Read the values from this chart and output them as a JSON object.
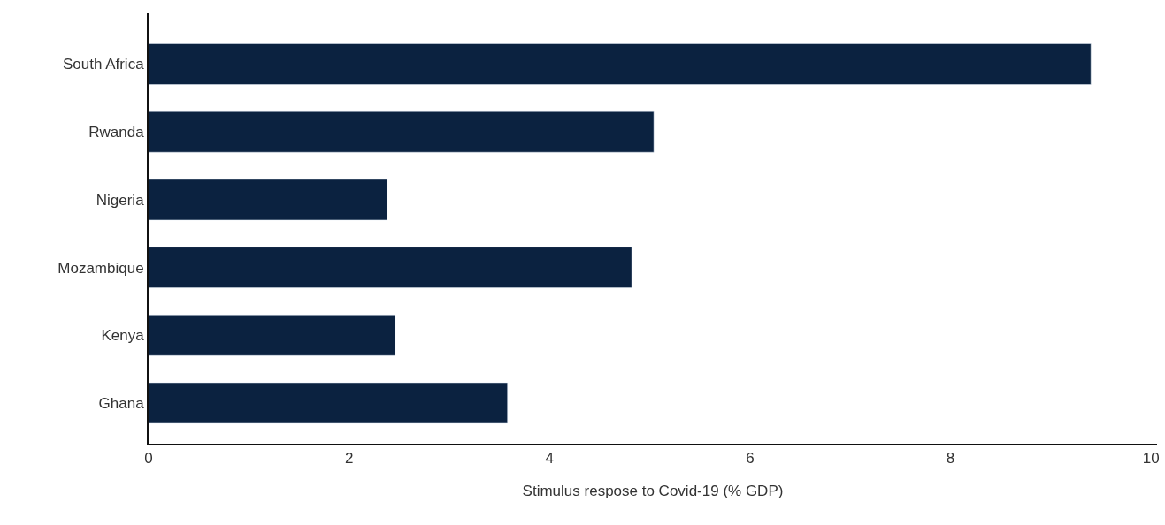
{
  "chart_data": {
    "type": "bar",
    "orientation": "horizontal",
    "categories": [
      "South Africa",
      "Rwanda",
      "Nigeria",
      "Mozambique",
      "Kenya",
      "Ghana"
    ],
    "values": [
      9.4,
      5.04,
      2.38,
      4.82,
      2.46,
      3.58
    ],
    "color": "#0b2240",
    "xlim": [
      0,
      10.06
    ],
    "xticks": [
      0,
      2,
      4,
      6,
      8,
      10
    ],
    "xlabel": "Stimulus respose to Covid-19 (% GDP)"
  }
}
